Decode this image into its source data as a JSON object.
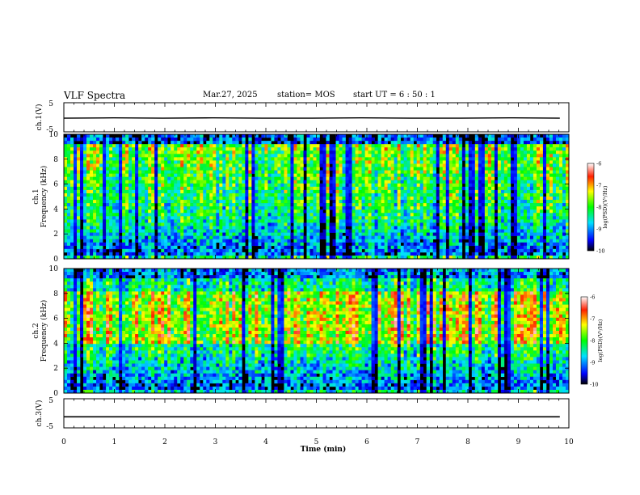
{
  "header": {
    "title": "VLF Spectra",
    "date": "Mar.27, 2025",
    "station": "station= MOS",
    "start": "start  UT =   6  : 50 : 1"
  },
  "chart_data": [
    {
      "type": "line",
      "panel": "ch1-waveform",
      "ylabel": "ch.1(V)",
      "ylim": [
        -5,
        5
      ],
      "yticks": [
        "5",
        "-5"
      ],
      "xlim": [
        0,
        10
      ],
      "series": [
        {
          "values": [
            -0.3,
            -0.2,
            -0.3,
            -0.2,
            -0.3,
            -0.3,
            -0.2,
            -0.3,
            -0.3,
            -0.2,
            -0.3
          ]
        }
      ]
    },
    {
      "type": "heatmap",
      "panel": "ch1-spectrogram",
      "ylabel_lines": [
        "ch.1",
        "Frequency (kHz)"
      ],
      "ylim": [
        0,
        10
      ],
      "yticks": [
        "0",
        "2",
        "4",
        "6",
        "8",
        "10"
      ],
      "xlim": [
        0,
        10
      ],
      "colorbar": {
        "label": "log(PSD)(V²/Hz)",
        "range": [
          -10,
          -6
        ],
        "ticks": [
          "-6",
          "-7",
          "-8",
          "-9",
          "-10"
        ]
      }
    },
    {
      "type": "heatmap",
      "panel": "ch2-spectrogram",
      "ylabel_lines": [
        "ch.2",
        "Frequency (kHz)"
      ],
      "ylim": [
        0,
        10
      ],
      "yticks": [
        "0",
        "2",
        "4",
        "6",
        "8",
        "10"
      ],
      "xlim": [
        0,
        10
      ],
      "colorbar": {
        "label": "log(PSD)(V²/Hz)",
        "range": [
          -10,
          -6
        ],
        "ticks": [
          "-6",
          "-7",
          "-8",
          "-9",
          "-10"
        ]
      }
    },
    {
      "type": "line",
      "panel": "ch3-waveform",
      "ylabel": "ch.3(V)",
      "ylim": [
        -5,
        5
      ],
      "yticks": [
        "5",
        "-5"
      ],
      "xlim": [
        0,
        10
      ],
      "xlabel": "Time (min)",
      "xticks": [
        "0",
        "1",
        "2",
        "3",
        "4",
        "5",
        "6",
        "7",
        "8",
        "9",
        "10"
      ],
      "series": [
        {
          "values": [
            -1.2,
            -1.2,
            -1.2,
            -1.2,
            -1.2,
            -1.2,
            -1.2,
            -1.2,
            -1.2,
            -1.2,
            -1.2
          ]
        }
      ]
    }
  ],
  "colors": {
    "bg": "#ffffff",
    "axis": "#000000"
  }
}
